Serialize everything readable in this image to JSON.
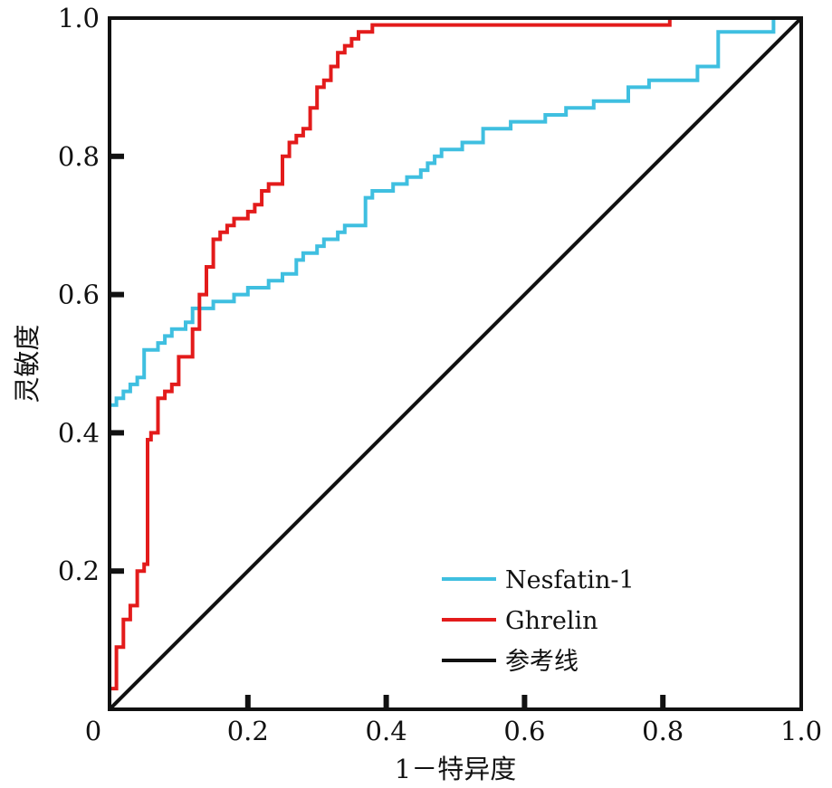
{
  "chart_data": {
    "type": "line",
    "title": "",
    "xlabel": "1－特异度",
    "ylabel": "灵敏度",
    "xlim": [
      0,
      1
    ],
    "ylim": [
      0,
      1
    ],
    "x_ticks": [
      "0",
      "0.2",
      "0.4",
      "0.6",
      "0.8",
      "1.0"
    ],
    "y_ticks": [
      "0.2",
      "0.4",
      "0.6",
      "0.8",
      "1.0"
    ],
    "legend_position": "bottom-right",
    "grid": false,
    "series": [
      {
        "name": "Nesfatin-1",
        "color": "#3fbfe0",
        "step": true,
        "points": [
          [
            0,
            0
          ],
          [
            0,
            0.44
          ],
          [
            0.01,
            0.44
          ],
          [
            0.01,
            0.45
          ],
          [
            0.02,
            0.45
          ],
          [
            0.02,
            0.46
          ],
          [
            0.03,
            0.46
          ],
          [
            0.03,
            0.47
          ],
          [
            0.04,
            0.47
          ],
          [
            0.04,
            0.48
          ],
          [
            0.05,
            0.48
          ],
          [
            0.05,
            0.52
          ],
          [
            0.07,
            0.52
          ],
          [
            0.07,
            0.53
          ],
          [
            0.08,
            0.53
          ],
          [
            0.08,
            0.54
          ],
          [
            0.09,
            0.54
          ],
          [
            0.09,
            0.55
          ],
          [
            0.11,
            0.55
          ],
          [
            0.11,
            0.56
          ],
          [
            0.12,
            0.56
          ],
          [
            0.12,
            0.58
          ],
          [
            0.15,
            0.58
          ],
          [
            0.15,
            0.59
          ],
          [
            0.18,
            0.59
          ],
          [
            0.18,
            0.6
          ],
          [
            0.2,
            0.6
          ],
          [
            0.2,
            0.61
          ],
          [
            0.23,
            0.61
          ],
          [
            0.23,
            0.62
          ],
          [
            0.25,
            0.62
          ],
          [
            0.25,
            0.63
          ],
          [
            0.27,
            0.63
          ],
          [
            0.27,
            0.65
          ],
          [
            0.28,
            0.65
          ],
          [
            0.28,
            0.66
          ],
          [
            0.3,
            0.66
          ],
          [
            0.3,
            0.67
          ],
          [
            0.31,
            0.67
          ],
          [
            0.31,
            0.68
          ],
          [
            0.33,
            0.68
          ],
          [
            0.33,
            0.69
          ],
          [
            0.34,
            0.69
          ],
          [
            0.34,
            0.7
          ],
          [
            0.37,
            0.7
          ],
          [
            0.37,
            0.74
          ],
          [
            0.38,
            0.74
          ],
          [
            0.38,
            0.75
          ],
          [
            0.41,
            0.75
          ],
          [
            0.41,
            0.76
          ],
          [
            0.43,
            0.76
          ],
          [
            0.43,
            0.77
          ],
          [
            0.45,
            0.77
          ],
          [
            0.45,
            0.78
          ],
          [
            0.46,
            0.78
          ],
          [
            0.46,
            0.79
          ],
          [
            0.47,
            0.79
          ],
          [
            0.47,
            0.8
          ],
          [
            0.48,
            0.8
          ],
          [
            0.48,
            0.81
          ],
          [
            0.51,
            0.81
          ],
          [
            0.51,
            0.82
          ],
          [
            0.54,
            0.82
          ],
          [
            0.54,
            0.84
          ],
          [
            0.58,
            0.84
          ],
          [
            0.58,
            0.85
          ],
          [
            0.63,
            0.85
          ],
          [
            0.63,
            0.86
          ],
          [
            0.66,
            0.86
          ],
          [
            0.66,
            0.87
          ],
          [
            0.7,
            0.87
          ],
          [
            0.7,
            0.88
          ],
          [
            0.75,
            0.88
          ],
          [
            0.75,
            0.9
          ],
          [
            0.78,
            0.9
          ],
          [
            0.78,
            0.91
          ],
          [
            0.85,
            0.91
          ],
          [
            0.85,
            0.93
          ],
          [
            0.88,
            0.93
          ],
          [
            0.88,
            0.98
          ],
          [
            0.96,
            0.98
          ],
          [
            0.96,
            1.0
          ],
          [
            1.0,
            1.0
          ]
        ]
      },
      {
        "name": "Ghrelin",
        "color": "#e31b1b",
        "step": true,
        "points": [
          [
            0,
            0
          ],
          [
            0,
            0.03
          ],
          [
            0.01,
            0.03
          ],
          [
            0.01,
            0.09
          ],
          [
            0.02,
            0.09
          ],
          [
            0.02,
            0.13
          ],
          [
            0.03,
            0.13
          ],
          [
            0.03,
            0.15
          ],
          [
            0.04,
            0.15
          ],
          [
            0.04,
            0.2
          ],
          [
            0.05,
            0.2
          ],
          [
            0.05,
            0.21
          ],
          [
            0.055,
            0.21
          ],
          [
            0.055,
            0.39
          ],
          [
            0.06,
            0.39
          ],
          [
            0.06,
            0.4
          ],
          [
            0.07,
            0.4
          ],
          [
            0.07,
            0.45
          ],
          [
            0.08,
            0.45
          ],
          [
            0.08,
            0.46
          ],
          [
            0.09,
            0.46
          ],
          [
            0.09,
            0.47
          ],
          [
            0.1,
            0.47
          ],
          [
            0.1,
            0.51
          ],
          [
            0.12,
            0.51
          ],
          [
            0.12,
            0.55
          ],
          [
            0.13,
            0.55
          ],
          [
            0.13,
            0.6
          ],
          [
            0.14,
            0.6
          ],
          [
            0.14,
            0.64
          ],
          [
            0.15,
            0.64
          ],
          [
            0.15,
            0.68
          ],
          [
            0.16,
            0.68
          ],
          [
            0.16,
            0.69
          ],
          [
            0.17,
            0.69
          ],
          [
            0.17,
            0.7
          ],
          [
            0.18,
            0.7
          ],
          [
            0.18,
            0.71
          ],
          [
            0.2,
            0.71
          ],
          [
            0.2,
            0.72
          ],
          [
            0.21,
            0.72
          ],
          [
            0.21,
            0.73
          ],
          [
            0.22,
            0.73
          ],
          [
            0.22,
            0.75
          ],
          [
            0.23,
            0.75
          ],
          [
            0.23,
            0.76
          ],
          [
            0.25,
            0.76
          ],
          [
            0.25,
            0.8
          ],
          [
            0.26,
            0.8
          ],
          [
            0.26,
            0.82
          ],
          [
            0.27,
            0.82
          ],
          [
            0.27,
            0.83
          ],
          [
            0.28,
            0.83
          ],
          [
            0.28,
            0.84
          ],
          [
            0.29,
            0.84
          ],
          [
            0.29,
            0.87
          ],
          [
            0.3,
            0.87
          ],
          [
            0.3,
            0.9
          ],
          [
            0.31,
            0.9
          ],
          [
            0.31,
            0.91
          ],
          [
            0.32,
            0.91
          ],
          [
            0.32,
            0.93
          ],
          [
            0.33,
            0.93
          ],
          [
            0.33,
            0.95
          ],
          [
            0.34,
            0.95
          ],
          [
            0.34,
            0.96
          ],
          [
            0.35,
            0.96
          ],
          [
            0.35,
            0.97
          ],
          [
            0.36,
            0.97
          ],
          [
            0.36,
            0.98
          ],
          [
            0.38,
            0.98
          ],
          [
            0.38,
            0.99
          ],
          [
            0.81,
            0.99
          ],
          [
            0.81,
            1.0
          ],
          [
            1.0,
            1.0
          ]
        ]
      },
      {
        "name": "参考线",
        "color": "#111111",
        "step": false,
        "points": [
          [
            0,
            0
          ],
          [
            1,
            1
          ]
        ]
      }
    ]
  }
}
